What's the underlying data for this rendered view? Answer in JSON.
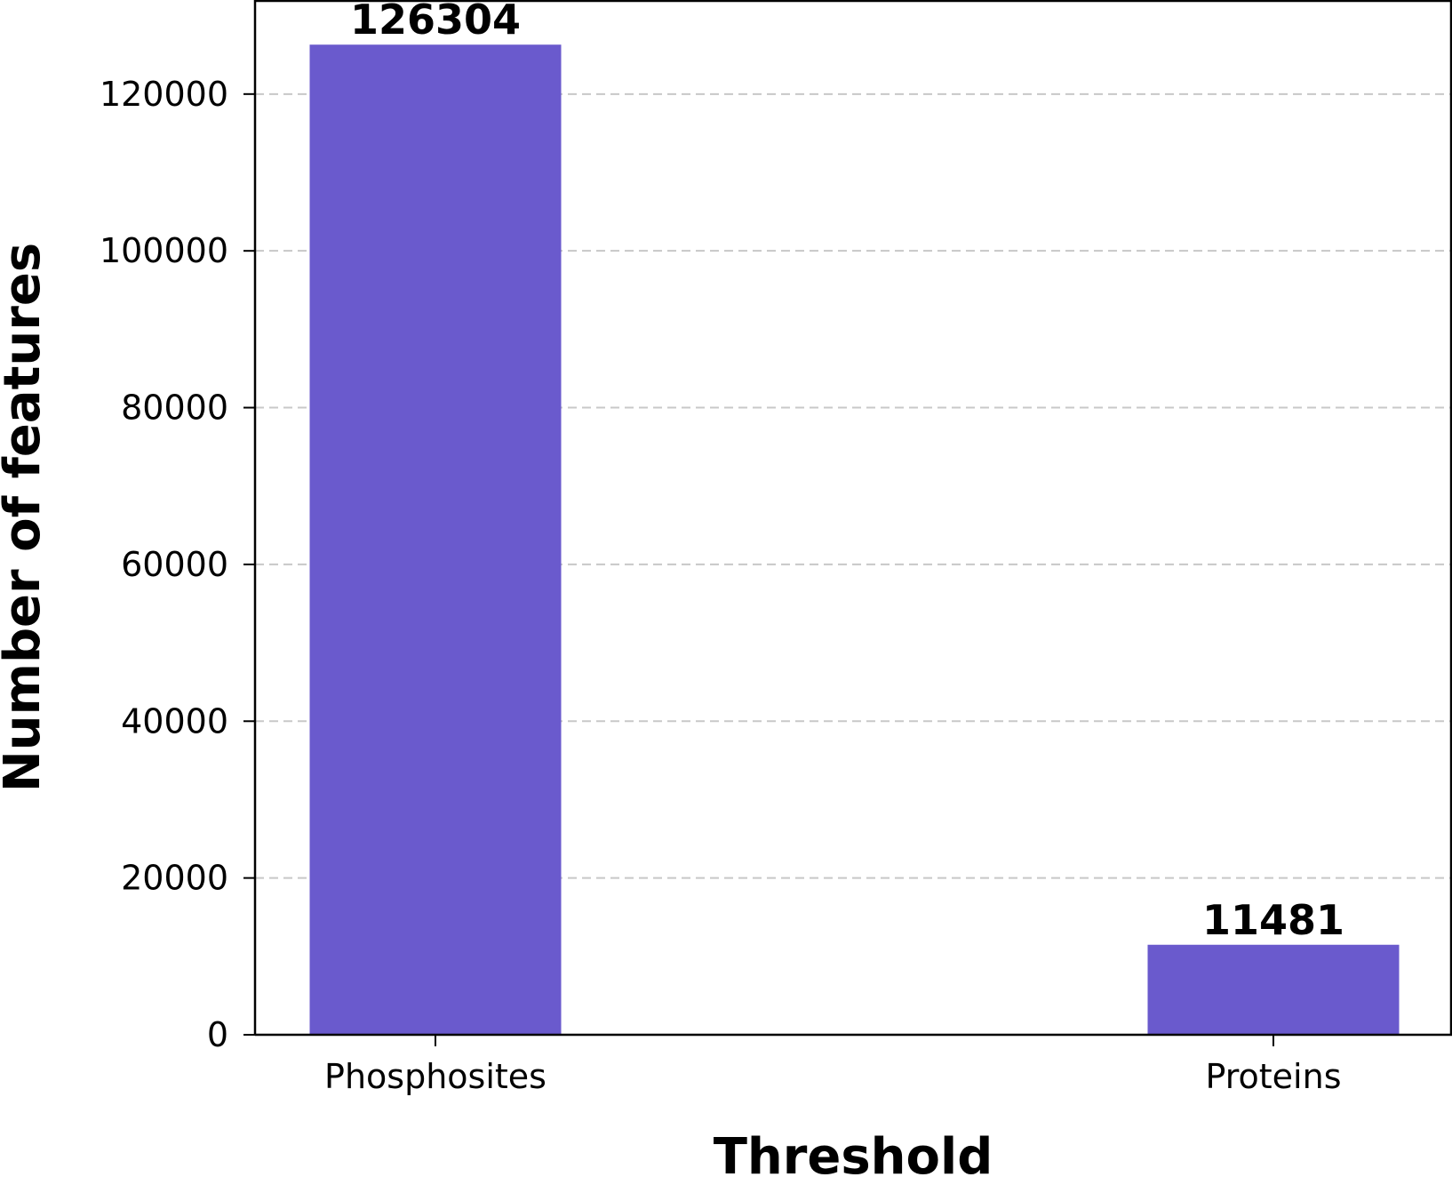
{
  "chart_data": {
    "type": "bar",
    "categories": [
      "Phosphosites",
      "Proteins"
    ],
    "values": [
      126304,
      11481
    ],
    "data_labels": [
      "126304",
      "11481"
    ],
    "title": "",
    "xlabel": "Threshold",
    "ylabel": "Number of features",
    "ylim": [
      0,
      132000
    ],
    "yticks": [
      0,
      20000,
      40000,
      60000,
      80000,
      100000,
      120000
    ],
    "ytick_labels": [
      "0",
      "20000",
      "40000",
      "60000",
      "80000",
      "100000",
      "120000"
    ],
    "grid": "y, dashed",
    "bar_color": "#6a5acd"
  }
}
